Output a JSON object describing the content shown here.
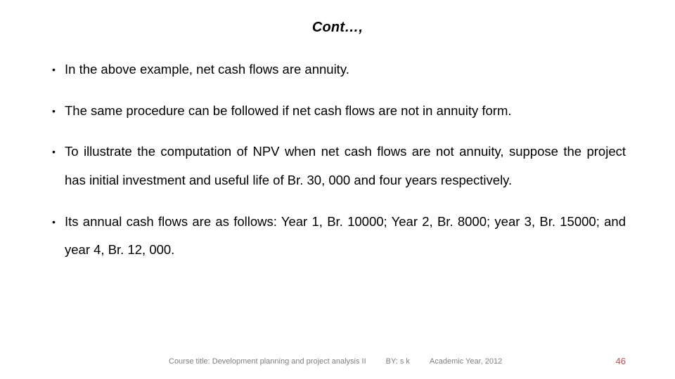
{
  "background_color": "#ffffff",
  "text_color": "#000000",
  "title": "Cont…,",
  "title_style": {
    "fontsize": 20,
    "weight": "700",
    "italic": true
  },
  "body_fontsize": 18.5,
  "line_height": 2.2,
  "bullets": [
    "In the above example, net cash flows are annuity.",
    "The same procedure can be followed if net cash flows are not in annuity form.",
    "To illustrate the computation of NPV when net cash flows are not annuity, suppose the project has initial investment and useful life of Br. 30, 000 and four years respectively.",
    "Its annual cash flows are as follows: Year 1, Br. 10000; Year 2, Br. 8000; year 3, Br. 15000; and year 4, Br. 12, 000."
  ],
  "footer": {
    "course": "Course title: Development planning and project analysis II",
    "author": "BY: s k",
    "year": "Academic Year, 2012",
    "page": "46",
    "fontsize": 11,
    "color": "#7f7f7f",
    "page_color": "#c0504d"
  }
}
